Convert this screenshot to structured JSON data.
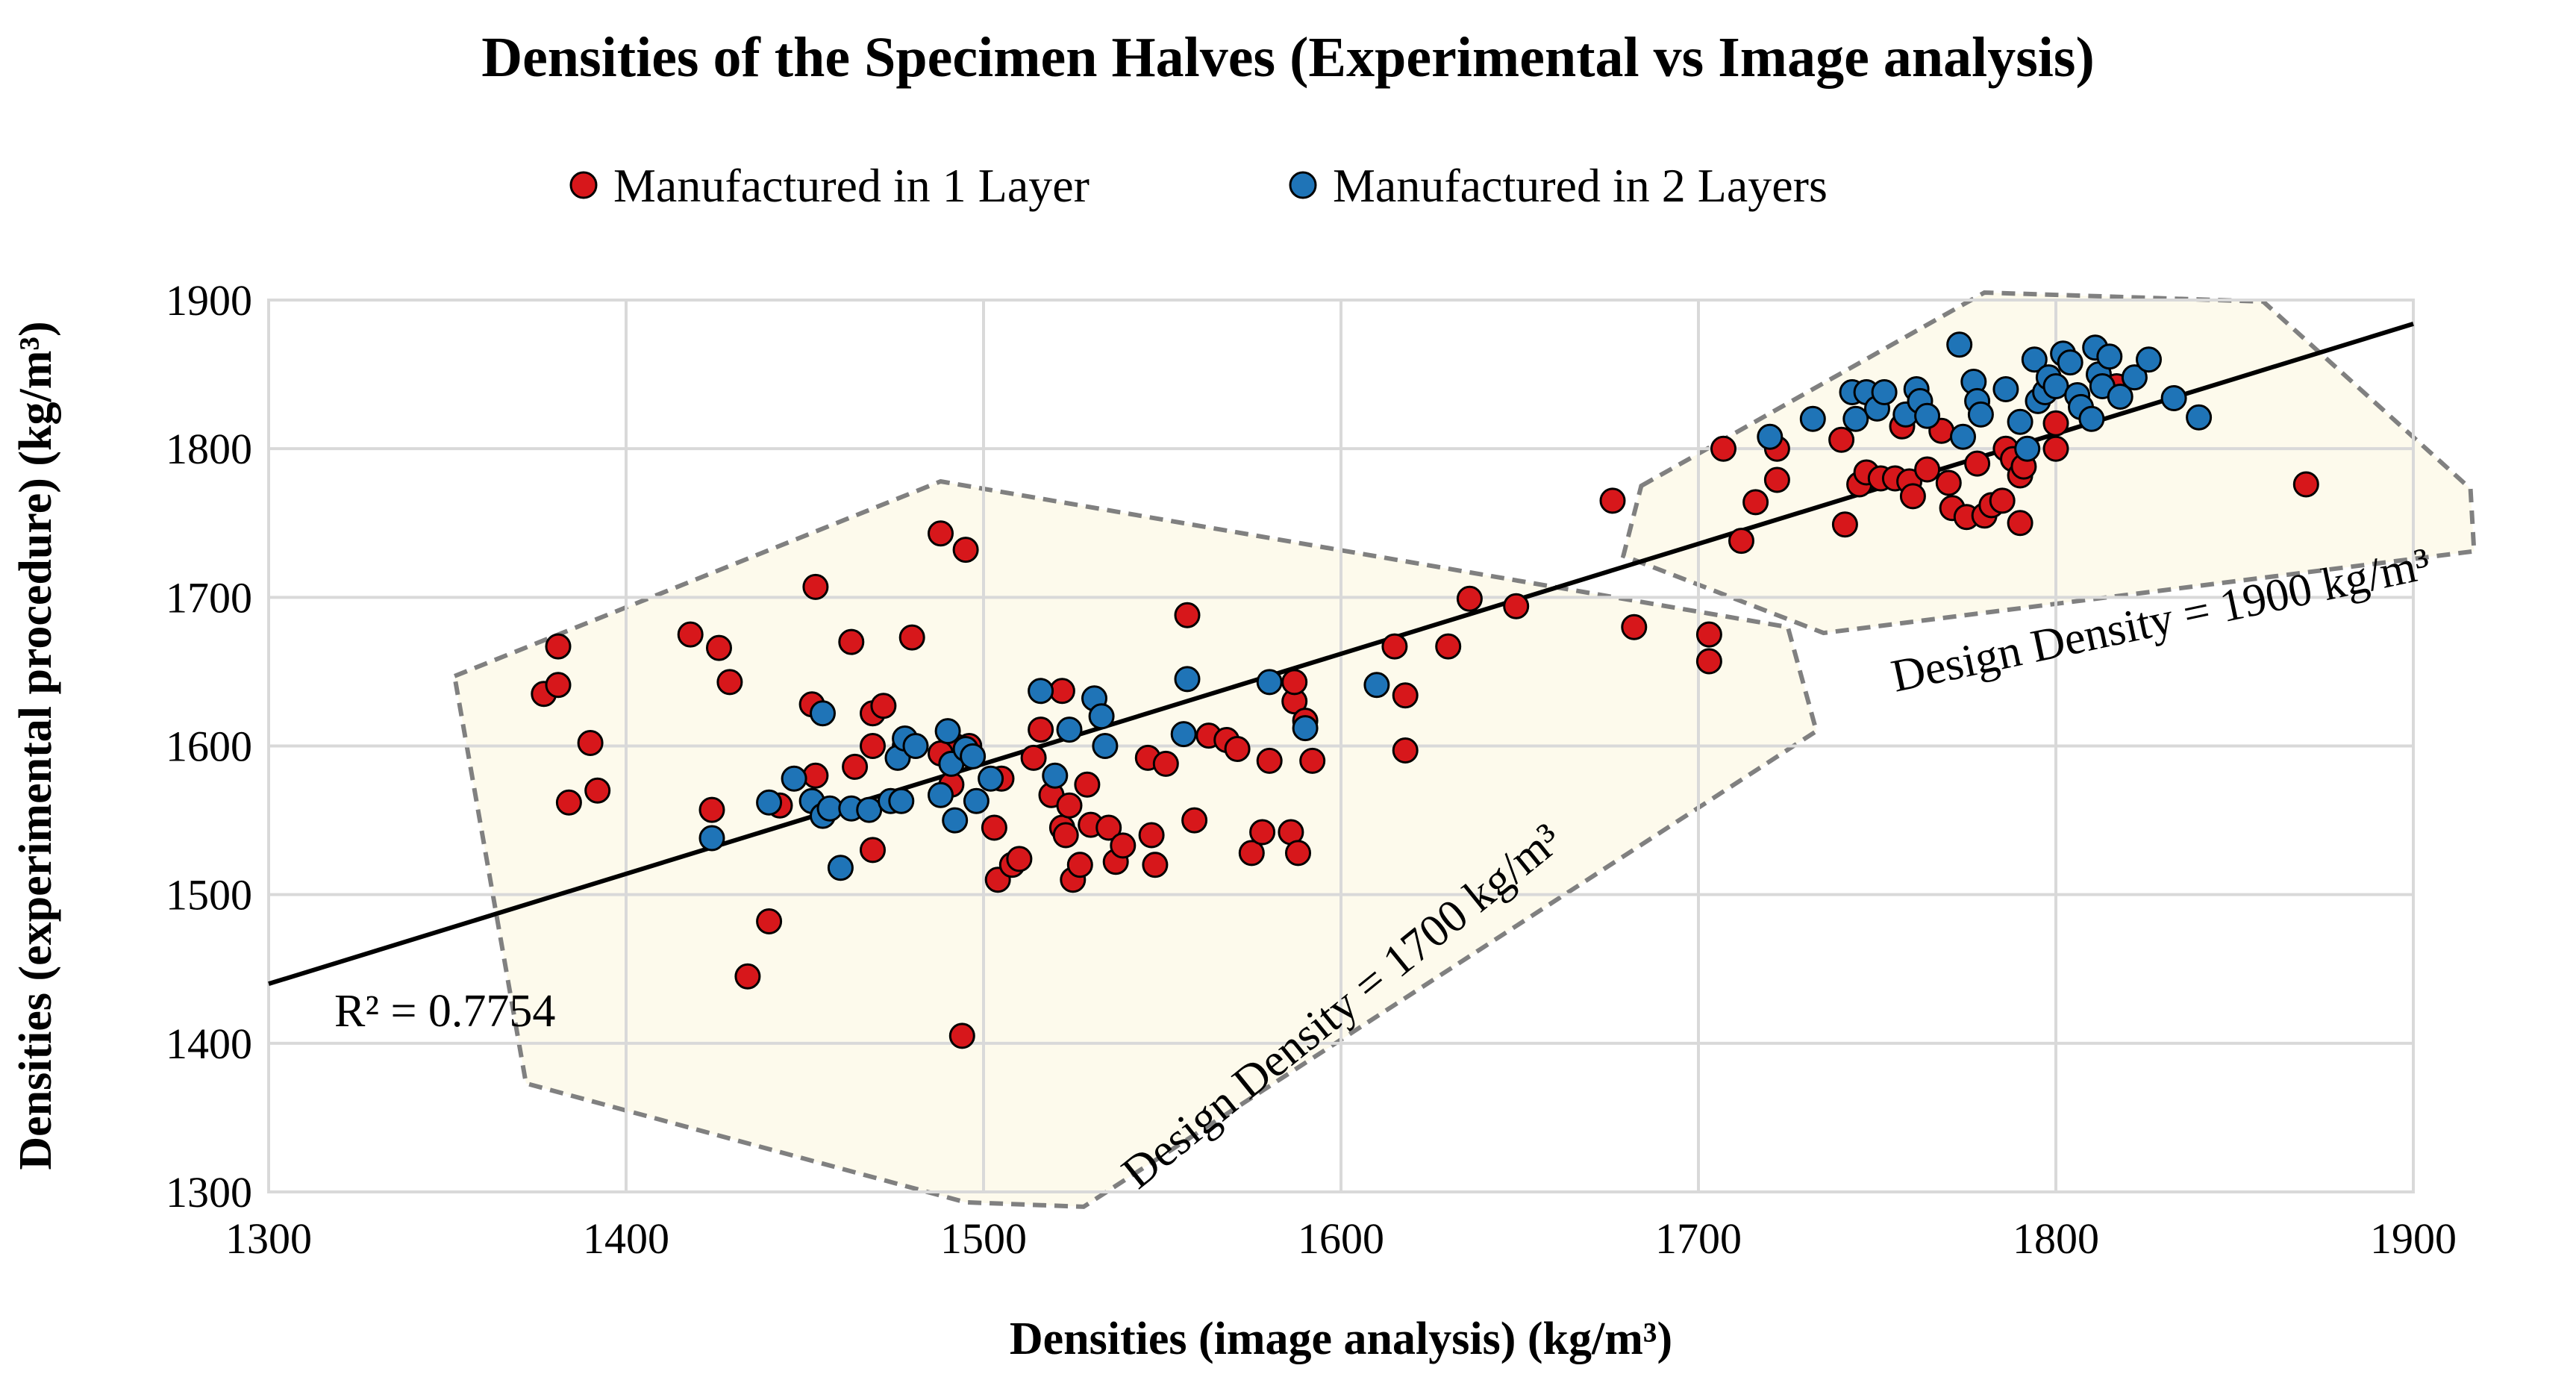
{
  "chart_data": {
    "type": "scatter",
    "title": "Densities of the Specimen Halves (Experimental vs Image analysis)",
    "xlabel": "Densities (image analysis) (kg/m³)",
    "ylabel": "Densities (experimental procedure) (kg/m³)",
    "xlim": [
      1300,
      1900
    ],
    "ylim": [
      1300,
      1900
    ],
    "xticks": [
      "1300",
      "1400",
      "1500",
      "1600",
      "1700",
      "1800",
      "1900"
    ],
    "yticks": [
      "1300",
      "1400",
      "1500",
      "1600",
      "1700",
      "1800",
      "1900"
    ],
    "grid": true,
    "legend_position": "top-center",
    "colors": {
      "series1": "#d7171b",
      "series2": "#1f74b7",
      "region_fill": "#fdfaec",
      "region_stroke": "#808080"
    },
    "trendline": {
      "x": [
        1300,
        1900
      ],
      "y": [
        1440,
        1884
      ],
      "label": "R² = 0.7754"
    },
    "regions": [
      {
        "label": "Design Density = 1700 kg/m³",
        "polygon": [
          [
            1352,
            1647
          ],
          [
            1488,
            1778
          ],
          [
            1725,
            1680
          ],
          [
            1733,
            1610
          ],
          [
            1528,
            1290
          ],
          [
            1495,
            1293
          ],
          [
            1372,
            1373
          ]
        ]
      },
      {
        "label": "Design Density = 1900 kg/m³",
        "polygon": [
          [
            1684,
            1775
          ],
          [
            1780,
            1905
          ],
          [
            1858,
            1899
          ],
          [
            1916,
            1773
          ],
          [
            1917,
            1731
          ],
          [
            1735,
            1676
          ],
          [
            1679,
            1728
          ]
        ]
      }
    ],
    "series": [
      {
        "name": "Manufactured in 1 Layer",
        "points": [
          [
            1377,
            1635
          ],
          [
            1381,
            1667
          ],
          [
            1381,
            1641
          ],
          [
            1384,
            1562
          ],
          [
            1390,
            1602
          ],
          [
            1392,
            1570
          ],
          [
            1418,
            1675
          ],
          [
            1426,
            1666
          ],
          [
            1424,
            1557
          ],
          [
            1429,
            1643
          ],
          [
            1434,
            1445
          ],
          [
            1440,
            1482
          ],
          [
            1443,
            1560
          ],
          [
            1453,
            1707
          ],
          [
            1452,
            1628
          ],
          [
            1453,
            1580
          ],
          [
            1463,
            1670
          ],
          [
            1464,
            1586
          ],
          [
            1469,
            1622
          ],
          [
            1469,
            1600
          ],
          [
            1472,
            1627
          ],
          [
            1469,
            1530
          ],
          [
            1480,
            1673
          ],
          [
            1478,
            1600
          ],
          [
            1488,
            1743
          ],
          [
            1492,
            1600
          ],
          [
            1495,
            1732
          ],
          [
            1494,
            1405
          ],
          [
            1488,
            1595
          ],
          [
            1491,
            1574
          ],
          [
            1496,
            1600
          ],
          [
            1503,
            1545
          ],
          [
            1504,
            1510
          ],
          [
            1505,
            1578
          ],
          [
            1508,
            1520
          ],
          [
            1510,
            1524
          ],
          [
            1514,
            1592
          ],
          [
            1516,
            1611
          ],
          [
            1519,
            1567
          ],
          [
            1522,
            1637
          ],
          [
            1522,
            1545
          ],
          [
            1524,
            1560
          ],
          [
            1523,
            1540
          ],
          [
            1525,
            1510
          ],
          [
            1527,
            1520
          ],
          [
            1529,
            1574
          ],
          [
            1530,
            1547
          ],
          [
            1535,
            1545
          ],
          [
            1537,
            1522
          ],
          [
            1539,
            1533
          ],
          [
            1546,
            1592
          ],
          [
            1547,
            1540
          ],
          [
            1548,
            1520
          ],
          [
            1551,
            1588
          ],
          [
            1557,
            1688
          ],
          [
            1559,
            1550
          ],
          [
            1563,
            1607
          ],
          [
            1568,
            1604
          ],
          [
            1571,
            1598
          ],
          [
            1575,
            1528
          ],
          [
            1578,
            1542
          ],
          [
            1580,
            1590
          ],
          [
            1586,
            1542
          ],
          [
            1587,
            1630
          ],
          [
            1587,
            1643
          ],
          [
            1588,
            1528
          ],
          [
            1590,
            1617
          ],
          [
            1592,
            1590
          ],
          [
            1615,
            1667
          ],
          [
            1618,
            1634
          ],
          [
            1618,
            1597
          ],
          [
            1630,
            1667
          ],
          [
            1636,
            1699
          ],
          [
            1649,
            1694
          ],
          [
            1676,
            1765
          ],
          [
            1682,
            1680
          ],
          [
            1703,
            1675
          ],
          [
            1703,
            1657
          ],
          [
            1707,
            1800
          ],
          [
            1712,
            1738
          ],
          [
            1716,
            1764
          ],
          [
            1722,
            1800
          ],
          [
            1722,
            1779
          ],
          [
            1740,
            1806
          ],
          [
            1741,
            1749
          ],
          [
            1745,
            1776
          ],
          [
            1747,
            1784
          ],
          [
            1751,
            1780
          ],
          [
            1755,
            1780
          ],
          [
            1757,
            1815
          ],
          [
            1759,
            1778
          ],
          [
            1760,
            1768
          ],
          [
            1764,
            1786
          ],
          [
            1768,
            1812
          ],
          [
            1770,
            1777
          ],
          [
            1771,
            1760
          ],
          [
            1775,
            1754
          ],
          [
            1778,
            1790
          ],
          [
            1780,
            1755
          ],
          [
            1782,
            1762
          ],
          [
            1785,
            1765
          ],
          [
            1786,
            1800
          ],
          [
            1788,
            1793
          ],
          [
            1790,
            1782
          ],
          [
            1790,
            1750
          ],
          [
            1791,
            1788
          ],
          [
            1800,
            1800
          ],
          [
            1800,
            1817
          ],
          [
            1817,
            1842
          ],
          [
            1870,
            1776
          ]
        ]
      },
      {
        "name": "Manufactured in 2 Layers",
        "points": [
          [
            1424,
            1538
          ],
          [
            1440,
            1562
          ],
          [
            1447,
            1578
          ],
          [
            1452,
            1563
          ],
          [
            1455,
            1622
          ],
          [
            1455,
            1553
          ],
          [
            1457,
            1558
          ],
          [
            1460,
            1518
          ],
          [
            1463,
            1558
          ],
          [
            1468,
            1557
          ],
          [
            1474,
            1563
          ],
          [
            1476,
            1592
          ],
          [
            1477,
            1563
          ],
          [
            1478,
            1605
          ],
          [
            1481,
            1600
          ],
          [
            1488,
            1567
          ],
          [
            1490,
            1610
          ],
          [
            1491,
            1588
          ],
          [
            1492,
            1550
          ],
          [
            1495,
            1598
          ],
          [
            1497,
            1593
          ],
          [
            1498,
            1563
          ],
          [
            1502,
            1578
          ],
          [
            1516,
            1637
          ],
          [
            1520,
            1580
          ],
          [
            1524,
            1611
          ],
          [
            1531,
            1632
          ],
          [
            1533,
            1620
          ],
          [
            1534,
            1600
          ],
          [
            1556,
            1608
          ],
          [
            1557,
            1645
          ],
          [
            1580,
            1643
          ],
          [
            1590,
            1612
          ],
          [
            1610,
            1641
          ],
          [
            1720,
            1808
          ],
          [
            1732,
            1820
          ],
          [
            1743,
            1838
          ],
          [
            1744,
            1820
          ],
          [
            1747,
            1838
          ],
          [
            1750,
            1827
          ],
          [
            1752,
            1838
          ],
          [
            1758,
            1823
          ],
          [
            1761,
            1840
          ],
          [
            1762,
            1832
          ],
          [
            1764,
            1822
          ],
          [
            1773,
            1870
          ],
          [
            1774,
            1808
          ],
          [
            1777,
            1845
          ],
          [
            1778,
            1832
          ],
          [
            1779,
            1823
          ],
          [
            1786,
            1840
          ],
          [
            1790,
            1818
          ],
          [
            1792,
            1800
          ],
          [
            1794,
            1860
          ],
          [
            1795,
            1832
          ],
          [
            1797,
            1838
          ],
          [
            1798,
            1848
          ],
          [
            1800,
            1842
          ],
          [
            1802,
            1864
          ],
          [
            1804,
            1858
          ],
          [
            1806,
            1836
          ],
          [
            1807,
            1828
          ],
          [
            1810,
            1820
          ],
          [
            1811,
            1868
          ],
          [
            1812,
            1850
          ],
          [
            1813,
            1842
          ],
          [
            1815,
            1862
          ],
          [
            1818,
            1835
          ],
          [
            1822,
            1848
          ],
          [
            1826,
            1860
          ],
          [
            1833,
            1834
          ],
          [
            1840,
            1821
          ]
        ]
      }
    ]
  }
}
